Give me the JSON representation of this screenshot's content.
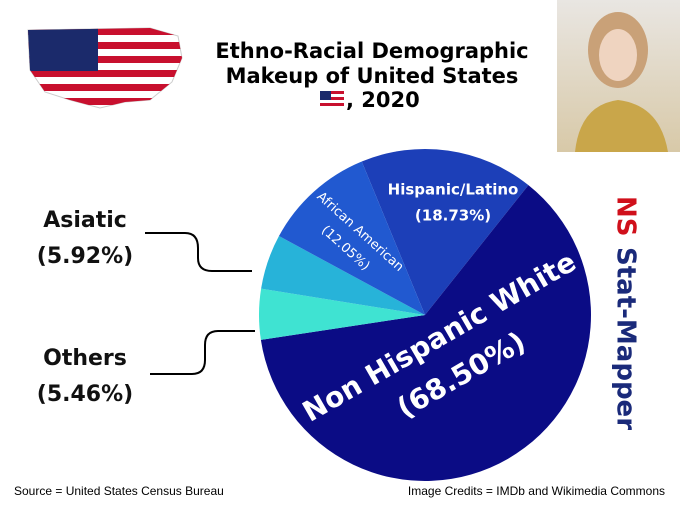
{
  "chart_data": {
    "type": "pie",
    "title": [
      "Ethno-Racial Demographic",
      "Makeup of United States",
      ", 2020"
    ],
    "watermark": [
      "NS",
      "Stat-Mapper"
    ],
    "source": "Source = United States Census Bureau",
    "credits": "Image Credits = IMDb and Wikimedia Commons",
    "categories": [
      "Hispanic/Latino",
      "Non Hispanic White",
      "Others",
      "Asiatic",
      "African American"
    ],
    "values": [
      18.73,
      68.5,
      5.46,
      5.92,
      12.05
    ],
    "value_labels": [
      "(18.73%)",
      "(68.50%)",
      "(5.46%)",
      "(5.92%)",
      "(12.05%)"
    ],
    "colors": [
      "#1c3fb8",
      "#0b0c85",
      "#3fe3d2",
      "#27b3d9",
      "#2159d0"
    ]
  }
}
